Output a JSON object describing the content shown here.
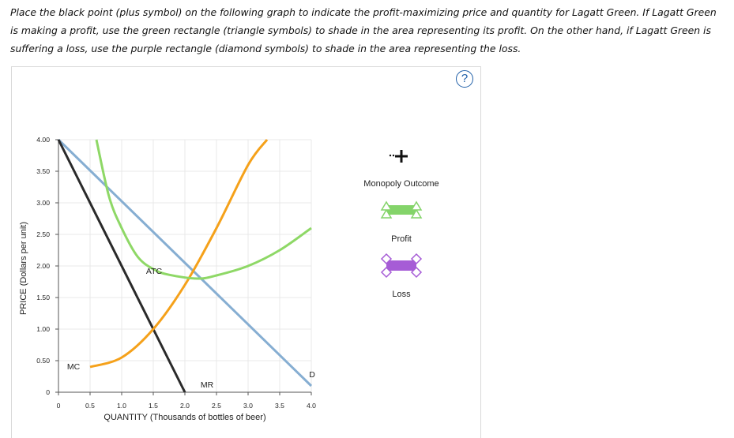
{
  "instructions": "Place the black point (plus symbol) on the following graph to indicate the profit-maximizing price and quantity for Lagatt Green. If Lagatt Green is making a profit, use the green rectangle (triangle symbols) to shade in the area representing its profit. On the other hand, if Lagatt Green is suffering a loss, use the purple rectangle (diamond symbols) to shade in the area representing the loss.",
  "help_symbol": "?",
  "legend": {
    "monopoly_outcome": "Monopoly Outcome",
    "profit": "Profit",
    "loss": "Loss"
  },
  "colors": {
    "demand": "#86aed2",
    "mr": "#2a2a2a",
    "mc": "#f5a11a",
    "atc": "#8ed866",
    "profit": "#84d46a",
    "loss": "#a65cd6",
    "grid": "#e9e9e9"
  },
  "chart_data": {
    "type": "line",
    "xlabel": "QUANTITY (Thousands of bottles of beer)",
    "ylabel": "PRICE (Dollars per unit)",
    "xlim": [
      0,
      4.0
    ],
    "ylim": [
      0,
      4.0
    ],
    "x_ticks": [
      "0",
      "0.5",
      "1.0",
      "1.5",
      "2.0",
      "2.5",
      "3.0",
      "3.5",
      "4.0"
    ],
    "y_ticks": [
      "0",
      "0.50",
      "1.00",
      "1.50",
      "2.00",
      "2.50",
      "3.00",
      "3.50",
      "4.00"
    ],
    "grid": true,
    "series": [
      {
        "name": "D",
        "key": "demand",
        "points": [
          [
            0,
            4.0
          ],
          [
            4.0,
            0.1
          ]
        ]
      },
      {
        "name": "MR",
        "key": "mr",
        "points": [
          [
            0,
            4.0
          ],
          [
            2.0,
            0
          ]
        ]
      },
      {
        "name": "MC",
        "key": "mc",
        "points": [
          [
            0.5,
            0.4
          ],
          [
            1.0,
            0.55
          ],
          [
            1.5,
            1.0
          ],
          [
            2.0,
            1.7
          ],
          [
            2.5,
            2.6
          ],
          [
            3.0,
            3.6
          ],
          [
            3.3,
            4.0
          ]
        ]
      },
      {
        "name": "ATC",
        "key": "atc",
        "points": [
          [
            0.6,
            4.0
          ],
          [
            0.8,
            3.1
          ],
          [
            1.0,
            2.6
          ],
          [
            1.25,
            2.15
          ],
          [
            1.5,
            1.95
          ],
          [
            1.75,
            1.86
          ],
          [
            2.2,
            1.8
          ],
          [
            2.5,
            1.85
          ],
          [
            3.0,
            2.0
          ],
          [
            3.5,
            2.25
          ],
          [
            4.0,
            2.6
          ]
        ]
      }
    ],
    "curve_labels": [
      {
        "text": "D",
        "series": "demand"
      },
      {
        "text": "MR",
        "series": "mr"
      },
      {
        "text": "MC",
        "series": "mc"
      },
      {
        "text": "ATC",
        "series": "atc"
      }
    ]
  }
}
